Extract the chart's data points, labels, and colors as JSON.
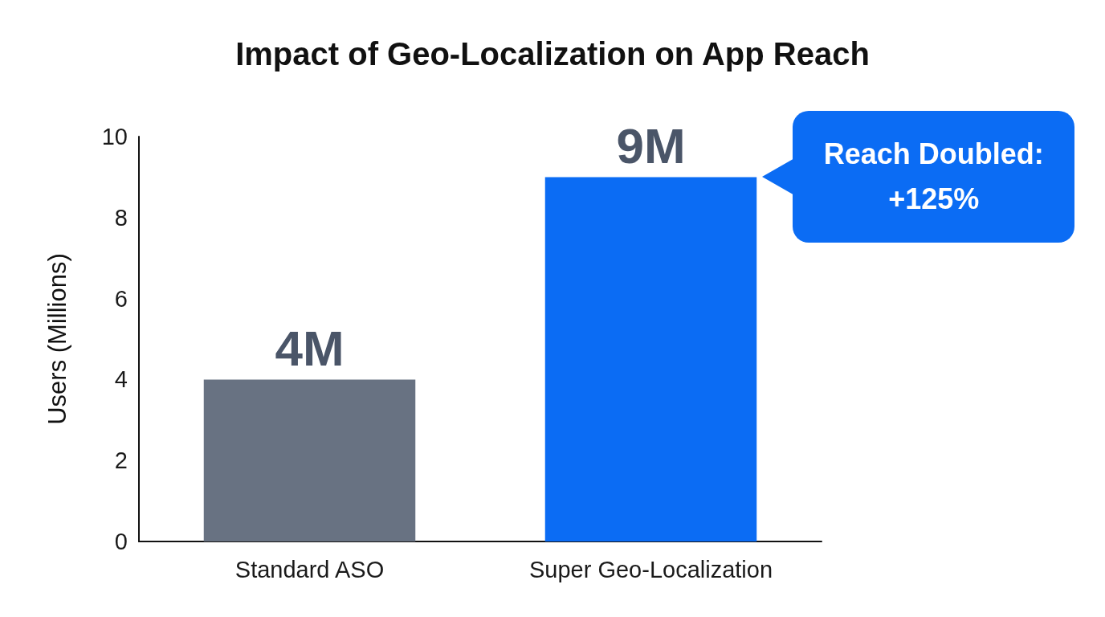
{
  "chart_data": {
    "type": "bar",
    "title": "Impact of Geo-Localization on App Reach",
    "ylabel": "Users (Millions)",
    "categories": [
      "Standard ASO",
      "Super Geo-Localization"
    ],
    "values": [
      4,
      9
    ],
    "colors": [
      "#687282",
      "#0b6cf4"
    ],
    "value_labels": [
      "4M",
      "9M"
    ],
    "ylim": [
      0,
      10
    ],
    "yticks": [
      0,
      2,
      4,
      6,
      8,
      10
    ],
    "annotations": [
      "Reach Doubled: +125%"
    ]
  }
}
